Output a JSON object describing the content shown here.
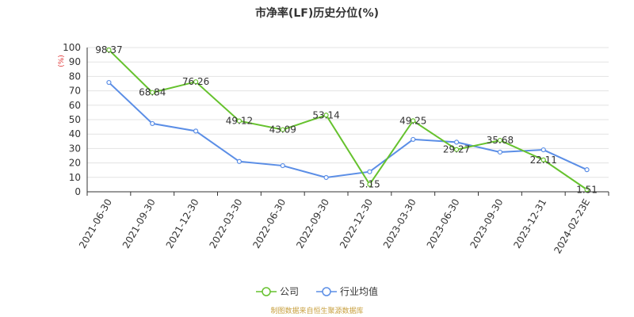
{
  "chart_data": {
    "type": "line",
    "title": "市净率(LF)历史分位(%)",
    "ylabel": "(%)",
    "xlabel": "",
    "ylim": [
      0,
      100
    ],
    "yticks": [
      "0",
      "10",
      "20",
      "30",
      "40",
      "50",
      "60",
      "70",
      "80",
      "90",
      "100"
    ],
    "categories": [
      "2021-06-30",
      "2021-09-30",
      "2021-12-30",
      "2022-03-30",
      "2022-06-30",
      "2022-09-30",
      "2022-12-30",
      "2023-03-30",
      "2023-06-30",
      "2023-09-30",
      "2023-12-31",
      "2024-02-23E"
    ],
    "series": [
      {
        "name": "公司",
        "color": "#66c22e",
        "values": [
          98.37,
          68.84,
          76.26,
          49.12,
          43.09,
          53.14,
          5.15,
          49.25,
          29.27,
          35.68,
          22.11,
          1.51
        ],
        "labels": [
          "98.37",
          "68.84",
          "76.26",
          "49.12",
          "43.09",
          "53.14",
          "5.15",
          "49.25",
          "29.27",
          "35.68",
          "22.11",
          "1.51"
        ]
      },
      {
        "name": "行业均值",
        "color": "#5b8ee6",
        "values": [
          75.8,
          47.3,
          42.1,
          21.0,
          18.1,
          9.9,
          13.9,
          36.3,
          34.4,
          27.5,
          29.1,
          15.3
        ]
      }
    ],
    "grid": true,
    "legend_position": "bottom"
  },
  "footer": {
    "source": "制图数据来自恒生聚源数据库"
  }
}
